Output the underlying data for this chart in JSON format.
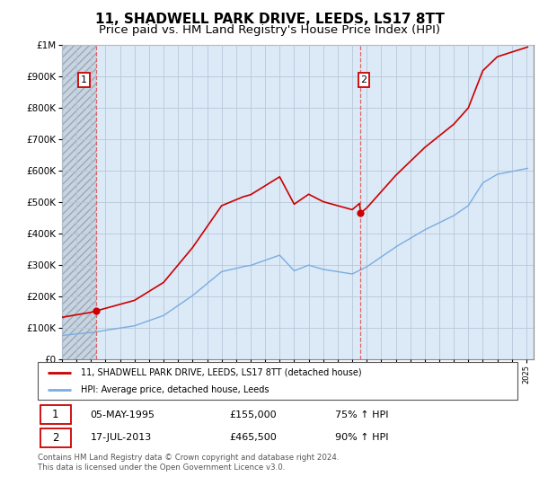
{
  "title": "11, SHADWELL PARK DRIVE, LEEDS, LS17 8TT",
  "subtitle": "Price paid vs. HM Land Registry's House Price Index (HPI)",
  "title_fontsize": 11,
  "subtitle_fontsize": 9.5,
  "sale1_date": 1995.35,
  "sale1_price": 155000,
  "sale2_date": 2013.54,
  "sale2_price": 465500,
  "legend_line1": "11, SHADWELL PARK DRIVE, LEEDS, LS17 8TT (detached house)",
  "legend_line2": "HPI: Average price, detached house, Leeds",
  "table_row1": [
    "1",
    "05-MAY-1995",
    "£155,000",
    "75% ↑ HPI"
  ],
  "table_row2": [
    "2",
    "17-JUL-2013",
    "£465,500",
    "90% ↑ HPI"
  ],
  "footer": "Contains HM Land Registry data © Crown copyright and database right 2024.\nThis data is licensed under the Open Government Licence v3.0.",
  "red_color": "#cc0000",
  "blue_color": "#7aade0",
  "bg_color": "#dce9f7",
  "hatch_color": "#b0b8c8",
  "grid_color": "#b8c8d8",
  "ylim": [
    0,
    1000000
  ],
  "xlim_start": 1993.0,
  "xlim_end": 2025.5
}
